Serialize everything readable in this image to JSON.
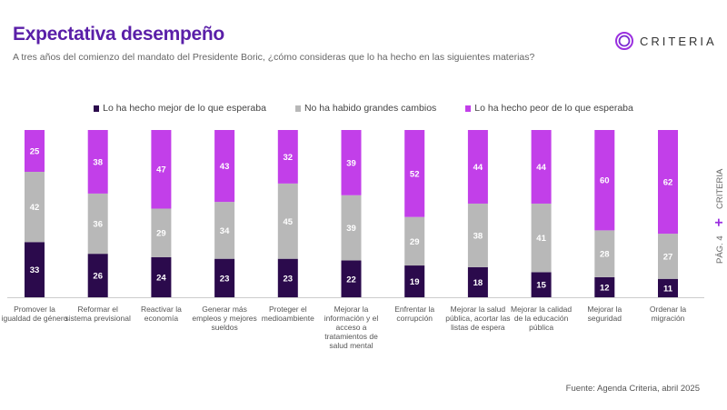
{
  "header": {
    "title": "Expectativa desempeño",
    "subtitle": "A tres años del comienzo del mandato del Presidente Boric, ¿cómo consideras que lo ha hecho en las siguientes materias?",
    "logo_text": "CRITERIA"
  },
  "side": {
    "brand": "CRITERIA",
    "page": "PÁG. 4"
  },
  "source": "Fuente: Agenda Criteria, abril 2025",
  "colors": {
    "title": "#5a1fa8",
    "mejor": "#2b0a4c",
    "sin_cambios": "#b8b8b8",
    "peor": "#c23fe9"
  },
  "chart_data": {
    "type": "bar",
    "stacked": true,
    "ylim": [
      0,
      100
    ],
    "grid": false,
    "legend": "top",
    "categories": [
      "Promover la igualdad de género",
      "Reformar el sistema previsional",
      "Reactivar la economía",
      "Generar más empleos y mejores sueldos",
      "Proteger el medioambiente",
      "Mejorar la información y el acceso a tratamientos de salud mental",
      "Enfrentar la corrupción",
      "Mejorar la salud pública, acortar las listas de espera",
      "Mejorar la calidad de la educación pública",
      "Mejorar la seguridad",
      "Ordenar la migración"
    ],
    "series": [
      {
        "name": "Lo ha hecho mejor de lo que esperaba",
        "color": "#2b0a4c",
        "values": [
          33,
          26,
          24,
          23,
          23,
          22,
          19,
          18,
          15,
          12,
          11
        ]
      },
      {
        "name": "No ha habido grandes cambios",
        "color": "#b8b8b8",
        "values": [
          42,
          36,
          29,
          34,
          45,
          39,
          29,
          38,
          41,
          28,
          27
        ]
      },
      {
        "name": "Lo ha hecho peor de lo que esperaba",
        "color": "#c23fe9",
        "values": [
          25,
          38,
          47,
          43,
          32,
          39,
          52,
          44,
          44,
          60,
          62
        ]
      }
    ]
  }
}
